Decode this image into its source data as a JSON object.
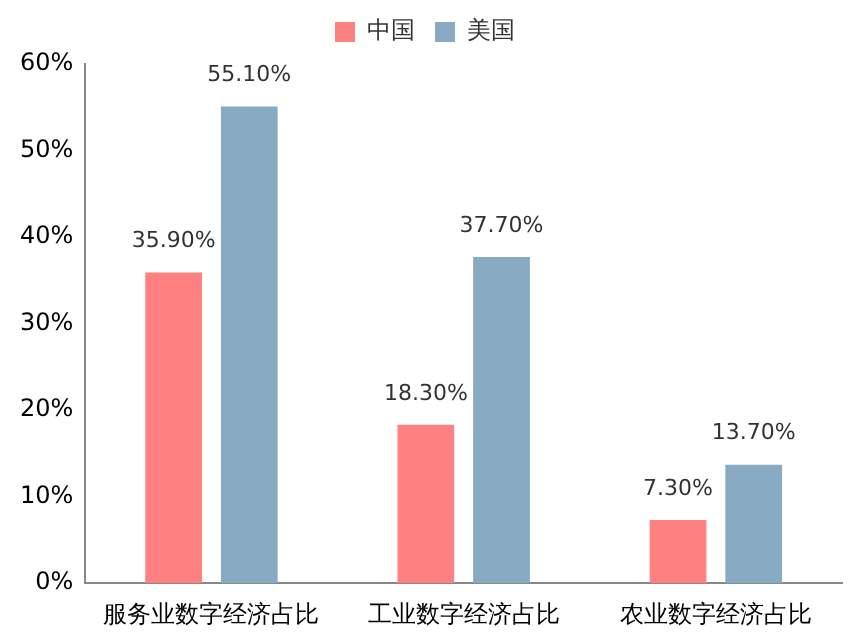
{
  "chart_data": {
    "type": "bar",
    "categories": [
      "服务业数字经济占比",
      "工业数字经济占比",
      "农业数字经济占比"
    ],
    "series": [
      {
        "name": "中国",
        "color": "#ff8080",
        "values": [
          35.9,
          18.3,
          7.3
        ],
        "value_labels": [
          "35.90%",
          "18.30%",
          "7.30%"
        ]
      },
      {
        "name": "美国",
        "color": "#88aac2",
        "values": [
          55.1,
          37.7,
          13.7
        ],
        "value_labels": [
          "55.10%",
          "37.70%",
          "13.70%"
        ]
      }
    ],
    "ylim": [
      0,
      60
    ],
    "yticks": [
      {
        "value": 0,
        "label": "0%"
      },
      {
        "value": 10,
        "label": "10%"
      },
      {
        "value": 20,
        "label": "20%"
      },
      {
        "value": 30,
        "label": "30%"
      },
      {
        "value": 40,
        "label": "40%"
      },
      {
        "value": 50,
        "label": "50%"
      },
      {
        "value": 60,
        "label": "60%"
      }
    ],
    "grid": false,
    "legend": "top"
  }
}
